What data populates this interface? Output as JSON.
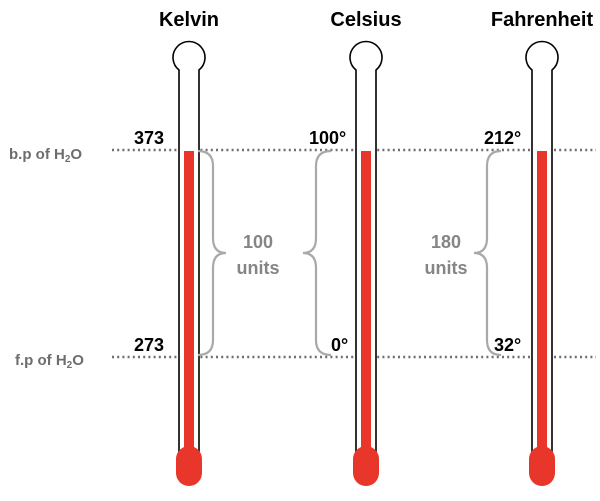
{
  "colors": {
    "mercury": "#e8372a",
    "guide_line": "#6e6e6e",
    "brace": "#a9a9a9",
    "reference_label": "#6d6d6d",
    "units_label": "#858585",
    "text": "#000000"
  },
  "reference_lines": {
    "boiling": {
      "label_prefix": "b.p of H",
      "label_subscript": "2",
      "label_suffix": "O"
    },
    "freezing": {
      "label_prefix": "f.p of H",
      "label_subscript": "2",
      "label_suffix": "O"
    }
  },
  "scales": [
    {
      "name": "Kelvin",
      "boiling": "373",
      "freezing": "273"
    },
    {
      "name": "Celsius",
      "boiling": "100°",
      "freezing": "0°"
    },
    {
      "name": "Fahrenheit",
      "boiling": "212°",
      "freezing": "32°"
    }
  ],
  "intervals": [
    {
      "amount": "100",
      "unit_word": "units"
    },
    {
      "amount": "180",
      "unit_word": "units"
    }
  ]
}
